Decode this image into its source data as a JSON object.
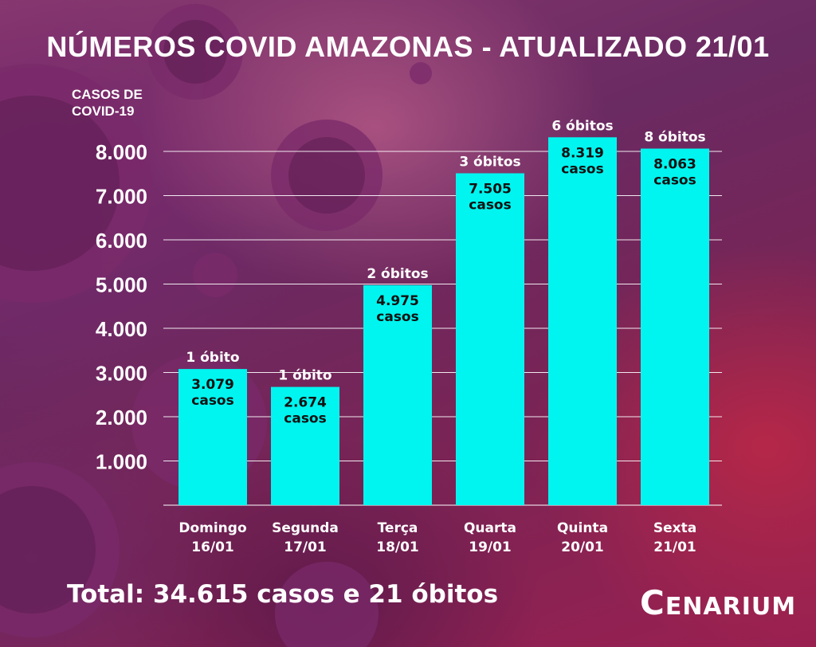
{
  "title": "NÚMEROS COVID AMAZONAS - ATUALIZADO 21/01",
  "total": "Total: 34.615 casos e 21 óbitos",
  "logo": "CENARIUM",
  "colors": {
    "bar": "#00f5f0",
    "bar_text": "#111111",
    "grid": "#ffffff",
    "text": "#ffffff"
  },
  "chart_data": {
    "type": "bar",
    "ylabel": "CASOS DE\nCOVID-19",
    "ylim": [
      0,
      8300
    ],
    "yticks": [
      1000,
      2000,
      3000,
      4000,
      5000,
      6000,
      7000,
      8000
    ],
    "ytick_labels": [
      "1.000",
      "2.000",
      "3.000",
      "4.000",
      "5.000",
      "6.000",
      "7.000",
      "8.000"
    ],
    "grid": true,
    "categories": [
      {
        "day": "Domingo",
        "date": "16/01"
      },
      {
        "day": "Segunda",
        "date": "17/01"
      },
      {
        "day": "Terça",
        "date": "18/01"
      },
      {
        "day": "Quarta",
        "date": "19/01"
      },
      {
        "day": "Quinta",
        "date": "20/01"
      },
      {
        "day": "Sexta",
        "date": "21/01"
      }
    ],
    "values": [
      3079,
      2674,
      4975,
      7505,
      8319,
      8063
    ],
    "value_labels": [
      "3.079",
      "2.674",
      "4.975",
      "7.505",
      "8.319",
      "8.063"
    ],
    "value_unit": "casos",
    "deaths_labels": [
      "1 óbito",
      "1 óbito",
      "2 óbitos",
      "3 óbitos",
      "6 óbitos",
      "8 óbitos"
    ]
  }
}
